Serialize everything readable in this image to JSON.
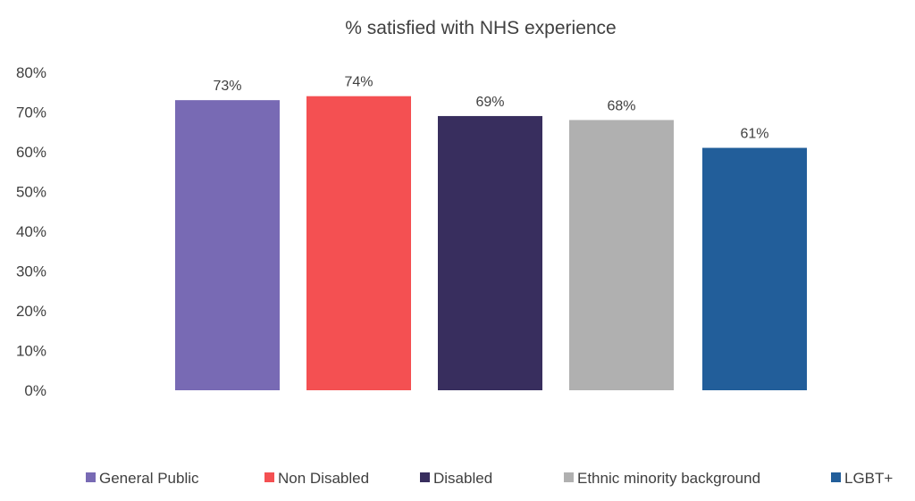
{
  "chart_data": {
    "type": "bar",
    "title": "% satisfied with NHS experience",
    "categories": [
      "General Public",
      "Non Disabled",
      "Disabled",
      "Ethnic minority background",
      "LGBT+"
    ],
    "values": [
      73,
      74,
      69,
      68,
      61
    ],
    "data_labels": [
      "73%",
      "74%",
      "69%",
      "68%",
      "61%"
    ],
    "colors": [
      "#786AB4",
      "#F45052",
      "#382E5E",
      "#B0B0B0",
      "#225E9A"
    ],
    "ylim": [
      0,
      80
    ],
    "y_ticks": [
      "0%",
      "10%",
      "20%",
      "30%",
      "40%",
      "50%",
      "60%",
      "70%",
      "80%"
    ],
    "xlabel": "",
    "ylabel": "",
    "grid": false,
    "legend": {
      "position": "bottom",
      "entries": [
        "General Public",
        "Non Disabled",
        "Disabled",
        "Ethnic minority background",
        "LGBT+"
      ]
    }
  }
}
